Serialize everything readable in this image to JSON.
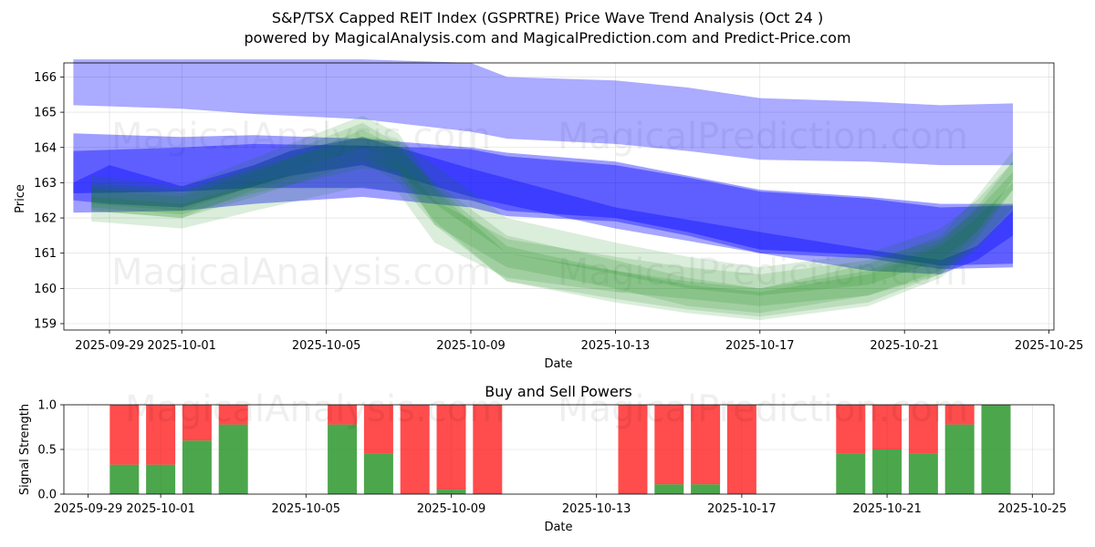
{
  "title_line1": "S&P/TSX Capped REIT Index (GSPRTRE) Price Wave Trend Analysis (Oct 24 )",
  "title_line2": "powered by MagicalAnalysis.com and MagicalPrediction.com and Predict-Price.com",
  "watermarks": {
    "left": "MagicalAnalysis.com",
    "right": "MagicalPrediction.com"
  },
  "colors": {
    "blue_band": "#0000ff",
    "green_band": "#008000",
    "buy": "#008000",
    "sell": "#ff0000",
    "grid": "#b0b0b0"
  },
  "chart_data": [
    {
      "type": "area",
      "title": "S&P/TSX Capped REIT Index (GSPRTRE) Price Wave Trend Analysis (Oct 24 )",
      "xlabel": "Date",
      "ylabel": "Price",
      "ylim": [
        158.8,
        166.4
      ],
      "xlim": [
        "2025-09-28",
        "2025-10-25"
      ],
      "grid": true,
      "x_ticks": [
        "2025-09-29",
        "2025-10-01",
        "2025-10-05",
        "2025-10-09",
        "2025-10-13",
        "2025-10-17",
        "2025-10-21",
        "2025-10-25"
      ],
      "y_ticks": [
        159,
        160,
        161,
        162,
        163,
        164,
        165,
        166
      ],
      "blue_bands": [
        {
          "name": "upper band",
          "dates": [
            "2025-09-28",
            "2025-10-01",
            "2025-10-03",
            "2025-10-06",
            "2025-10-09",
            "2025-10-10",
            "2025-10-13",
            "2025-10-15",
            "2025-10-17",
            "2025-10-20",
            "2025-10-22",
            "2025-10-24"
          ],
          "upper": [
            166.5,
            166.5,
            166.5,
            166.5,
            166.4,
            166.0,
            165.9,
            165.7,
            165.4,
            165.3,
            165.2,
            165.25
          ],
          "lower": [
            165.2,
            165.1,
            164.95,
            164.8,
            164.45,
            164.25,
            164.1,
            163.9,
            163.65,
            163.6,
            163.5,
            163.5
          ]
        },
        {
          "name": "middle band A",
          "dates": [
            "2025-09-28",
            "2025-10-01",
            "2025-10-03",
            "2025-10-06",
            "2025-10-09",
            "2025-10-10",
            "2025-10-13",
            "2025-10-15",
            "2025-10-17",
            "2025-10-20",
            "2025-10-22",
            "2025-10-24"
          ],
          "upper": [
            164.4,
            164.3,
            164.35,
            164.25,
            164.0,
            163.85,
            163.6,
            163.2,
            162.8,
            162.6,
            162.4,
            162.4
          ],
          "lower": [
            162.15,
            162.2,
            162.4,
            162.6,
            162.3,
            162.05,
            161.9,
            161.5,
            161.0,
            160.85,
            160.55,
            160.6
          ]
        },
        {
          "name": "middle band B",
          "dates": [
            "2025-09-28",
            "2025-10-01",
            "2025-10-03",
            "2025-10-06",
            "2025-10-09",
            "2025-10-10",
            "2025-10-13",
            "2025-10-15",
            "2025-10-17",
            "2025-10-20",
            "2025-10-22",
            "2025-10-24"
          ],
          "upper": [
            163.9,
            164.0,
            164.1,
            164.05,
            163.95,
            163.75,
            163.5,
            163.15,
            162.75,
            162.55,
            162.3,
            162.35
          ],
          "lower": [
            162.7,
            162.75,
            162.85,
            162.85,
            162.5,
            162.2,
            162.0,
            161.6,
            161.1,
            160.95,
            160.65,
            160.7
          ]
        },
        {
          "name": "oscillation band",
          "dates": [
            "2025-09-28",
            "2025-09-29",
            "2025-10-01",
            "2025-10-03",
            "2025-10-04",
            "2025-10-06",
            "2025-10-07",
            "2025-10-09",
            "2025-10-13",
            "2025-10-17",
            "2025-10-20",
            "2025-10-22",
            "2025-10-23",
            "2025-10-24"
          ],
          "upper": [
            163.0,
            163.5,
            162.9,
            163.5,
            163.9,
            164.3,
            164.0,
            163.4,
            162.3,
            161.6,
            161.1,
            160.8,
            161.2,
            162.2
          ],
          "lower": [
            162.5,
            162.4,
            162.3,
            162.9,
            163.2,
            163.5,
            163.2,
            162.6,
            161.7,
            161.0,
            160.5,
            160.4,
            160.8,
            161.5
          ]
        }
      ],
      "green_bands": [
        {
          "name": "green band 1",
          "dates": [
            "2025-09-28.5",
            "2025-10-01",
            "2025-10-03",
            "2025-10-06",
            "2025-10-07",
            "2025-10-08",
            "2025-10-10",
            "2025-10-13",
            "2025-10-15",
            "2025-10-17",
            "2025-10-20",
            "2025-10-22",
            "2025-10-23",
            "2025-10-24"
          ],
          "upper": [
            162.8,
            162.6,
            163.3,
            164.5,
            164.0,
            163.0,
            161.5,
            160.8,
            160.3,
            160.0,
            160.7,
            161.5,
            162.6,
            163.9
          ],
          "lower": [
            162.2,
            162.0,
            162.6,
            163.6,
            163.0,
            161.8,
            160.6,
            160.0,
            159.5,
            159.3,
            159.8,
            160.5,
            161.6,
            163.1
          ]
        },
        {
          "name": "green band 2",
          "dates": [
            "2025-09-28.5",
            "2025-10-01",
            "2025-10-03",
            "2025-10-06",
            "2025-10-07",
            "2025-10-08",
            "2025-10-10",
            "2025-10-13",
            "2025-10-15",
            "2025-10-17",
            "2025-10-20",
            "2025-10-22",
            "2025-10-23",
            "2025-10-24"
          ],
          "upper": [
            163.2,
            162.9,
            163.7,
            164.9,
            164.4,
            162.9,
            161.2,
            160.5,
            160.1,
            159.9,
            160.4,
            161.2,
            162.0,
            163.0
          ],
          "lower": [
            162.4,
            162.2,
            162.9,
            164.0,
            163.5,
            161.8,
            160.2,
            159.6,
            159.3,
            159.1,
            159.5,
            160.3,
            161.1,
            162.2
          ]
        },
        {
          "name": "green band 3",
          "dates": [
            "2025-09-28.5",
            "2025-10-01",
            "2025-10-03",
            "2025-10-06",
            "2025-10-07",
            "2025-10-08",
            "2025-10-10",
            "2025-10-13",
            "2025-10-15",
            "2025-10-17",
            "2025-10-20",
            "2025-10-22",
            "2025-10-23",
            "2025-10-24"
          ],
          "upper": [
            162.6,
            162.4,
            163.0,
            163.8,
            163.6,
            162.5,
            161.4,
            160.9,
            160.6,
            160.4,
            160.8,
            161.4,
            162.2,
            163.3
          ],
          "lower": [
            161.9,
            161.7,
            162.2,
            162.9,
            162.7,
            161.3,
            160.3,
            159.9,
            159.7,
            159.5,
            159.8,
            160.4,
            161.2,
            162.3
          ]
        },
        {
          "name": "green band 4",
          "dates": [
            "2025-09-28.5",
            "2025-10-01",
            "2025-10-03",
            "2025-10-06",
            "2025-10-07",
            "2025-10-08",
            "2025-10-10",
            "2025-10-13",
            "2025-10-15",
            "2025-10-17",
            "2025-10-20",
            "2025-10-22",
            "2025-10-23",
            "2025-10-24"
          ],
          "upper": [
            163.0,
            162.8,
            163.4,
            164.3,
            164.2,
            163.5,
            162.0,
            161.3,
            160.9,
            160.6,
            161.0,
            161.7,
            162.5,
            163.6
          ],
          "lower": [
            162.3,
            162.1,
            162.7,
            163.4,
            163.3,
            162.4,
            161.0,
            160.4,
            160.0,
            159.8,
            160.1,
            160.8,
            161.6,
            162.8
          ]
        },
        {
          "name": "green band 5",
          "dates": [
            "2025-09-28.5",
            "2025-10-01",
            "2025-10-03",
            "2025-10-06",
            "2025-10-07",
            "2025-10-08",
            "2025-10-10",
            "2025-10-13",
            "2025-10-15",
            "2025-10-17",
            "2025-10-20",
            "2025-10-22",
            "2025-10-23",
            "2025-10-24"
          ],
          "upper": [
            162.9,
            162.7,
            163.5,
            164.7,
            164.1,
            162.8,
            161.0,
            160.5,
            160.2,
            160.0,
            160.5,
            161.3,
            162.3,
            163.6
          ],
          "lower": [
            162.2,
            162.0,
            162.8,
            163.8,
            163.2,
            161.9,
            160.2,
            159.7,
            159.4,
            159.2,
            159.6,
            160.4,
            161.4,
            162.8
          ]
        }
      ]
    },
    {
      "type": "bar",
      "title": "Buy and Sell Powers",
      "xlabel": "Date",
      "ylabel": "Signal Strength",
      "ylim": [
        0,
        1.0
      ],
      "y_ticks": [
        0.0,
        0.5,
        1.0
      ],
      "y_tick_labels": [
        "0.0",
        "0.5",
        "1.0"
      ],
      "x_ticks": [
        "2025-09-29",
        "2025-10-01",
        "2025-10-05",
        "2025-10-09",
        "2025-10-13",
        "2025-10-17",
        "2025-10-21",
        "2025-10-25"
      ],
      "grid": true,
      "categories": [
        "2025-09-30",
        "2025-10-01",
        "2025-10-02",
        "2025-10-03",
        "2025-10-06",
        "2025-10-07",
        "2025-10-08",
        "2025-10-09",
        "2025-10-10",
        "2025-10-14",
        "2025-10-15",
        "2025-10-16",
        "2025-10-17",
        "2025-10-20",
        "2025-10-21",
        "2025-10-22",
        "2025-10-23",
        "2025-10-24"
      ],
      "series": [
        {
          "name": "Buy",
          "values": [
            0.33,
            0.33,
            0.6,
            0.78,
            0.78,
            0.45,
            0.0,
            0.05,
            0.0,
            0.0,
            0.11,
            0.11,
            0.0,
            0.45,
            0.5,
            0.45,
            0.78,
            1.0
          ]
        },
        {
          "name": "Sell",
          "values": [
            0.67,
            0.67,
            0.4,
            0.22,
            0.22,
            0.55,
            1.0,
            0.95,
            1.0,
            1.0,
            0.89,
            0.89,
            1.0,
            0.55,
            0.5,
            0.55,
            0.22,
            0.0
          ]
        }
      ]
    }
  ]
}
